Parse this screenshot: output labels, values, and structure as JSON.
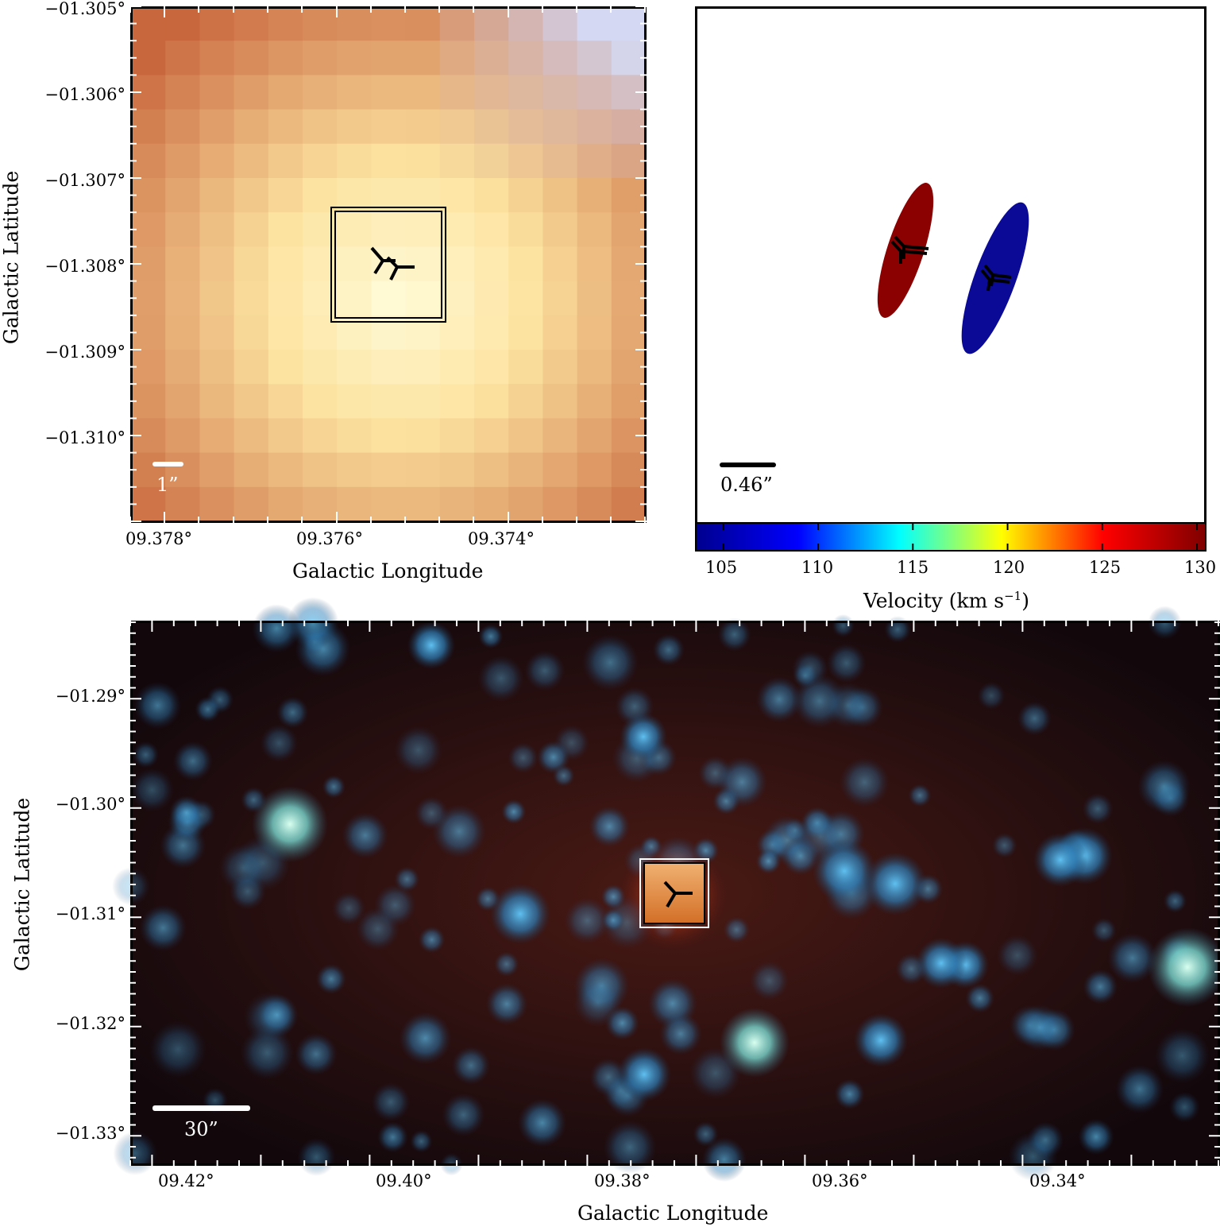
{
  "panel_top_left": {
    "x_ticks": [
      "09.378°",
      "09.376°",
      "09.374°"
    ],
    "y_ticks": [
      "−01.305°",
      "−01.306°",
      "−01.307°",
      "−01.308°",
      "−01.309°",
      "−01.310°"
    ],
    "xlabel": "Galactic Longitude",
    "ylabel": "Galactic Latitude",
    "scalebar_label": "1”",
    "colormap": "orange-yellow thermal map, brightest at center"
  },
  "panel_top_right": {
    "scalebar_label": "0.46”",
    "ellipses": [
      {
        "name": "redshifted component",
        "color": "#8b0000"
      },
      {
        "name": "blueshifted component",
        "color": "#0a0a96"
      }
    ],
    "colorbar": {
      "ticks": [
        "105",
        "110",
        "115",
        "120",
        "125",
        "130"
      ],
      "label_main": "Velocity (km s",
      "label_sup": "−1",
      "label_close": ")",
      "range": [
        103.5,
        130.5
      ],
      "colors": [
        "#00008f",
        "#0000ff",
        "#00ffff",
        "#ffff00",
        "#ff0000",
        "#800000"
      ]
    }
  },
  "panel_bottom": {
    "x_ticks": [
      "09.42°",
      "09.40°",
      "09.38°",
      "09.36°",
      "09.34°"
    ],
    "y_ticks": [
      "−01.29°",
      "−01.30°",
      "−01.31°",
      "−01.32°",
      "−01.33°"
    ],
    "xlabel": "Galactic Longitude",
    "ylabel": "Galactic Latitude",
    "scalebar_label": "30”"
  }
}
